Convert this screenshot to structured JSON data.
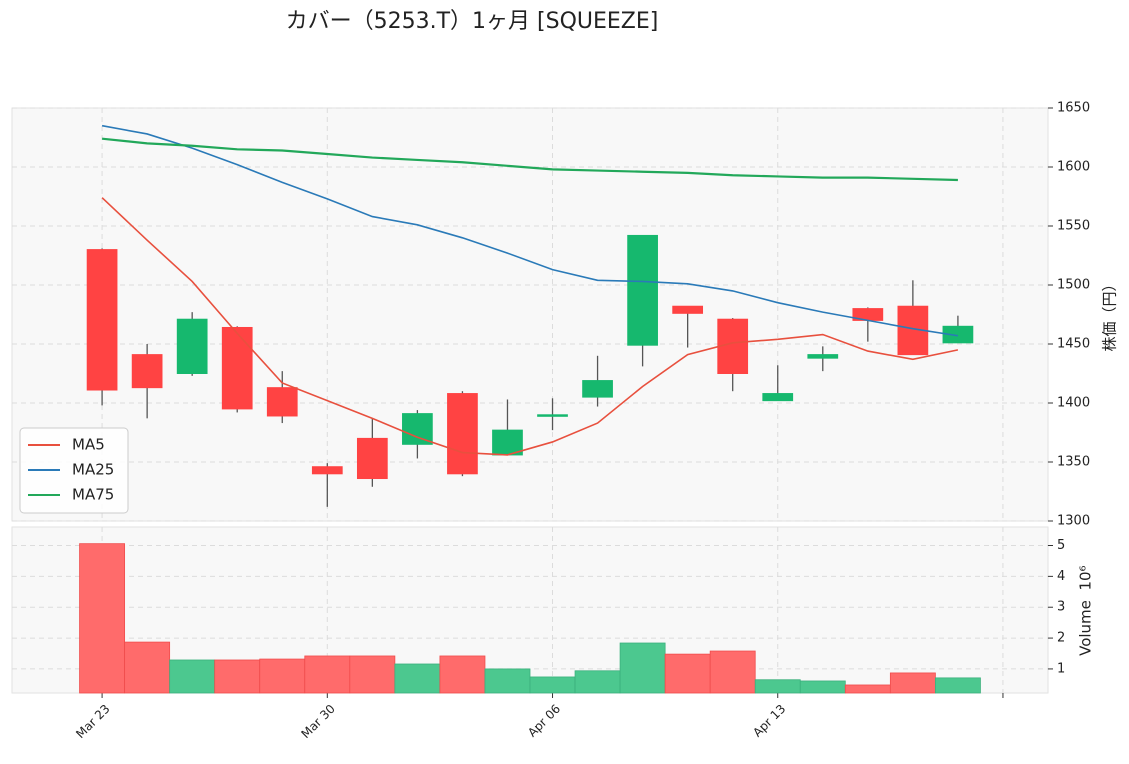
{
  "chart_data": {
    "type": "candlestick",
    "title": "カバー（5253.T）1ヶ月 [SQUEEZE]",
    "y_label": "株価（円）",
    "categories": [
      "Mar 23",
      null,
      null,
      null,
      null,
      "Mar 30",
      null,
      null,
      null,
      null,
      "Apr 06",
      null,
      null,
      null,
      null,
      "Apr 13",
      null,
      null,
      null,
      null
    ],
    "xlim": [
      -2,
      21
    ],
    "xticks": [
      0,
      5,
      10,
      15,
      20
    ],
    "open": [
      1530,
      1441,
      1425,
      1464,
      1413,
      1346,
      1370,
      1365,
      1408,
      1356,
      1389,
      1405,
      1449,
      1482,
      1471,
      1402,
      1438,
      1480,
      1482,
      1451
    ],
    "high": [
      1531,
      1450,
      1477,
      1465,
      1427,
      1349,
      1387,
      1394,
      1410,
      1403,
      1404,
      1440,
      1542,
      1482,
      1472,
      1432,
      1448,
      1481,
      1504,
      1474
    ],
    "low": [
      1398,
      1387,
      1423,
      1392,
      1383,
      1312,
      1329,
      1353,
      1338,
      1356,
      1377,
      1397,
      1431,
      1447,
      1410,
      1402,
      1427,
      1452,
      1441,
      1451
    ],
    "close": [
      1411,
      1413,
      1471,
      1395,
      1389,
      1340,
      1336,
      1391,
      1340,
      1377,
      1390,
      1419,
      1542,
      1476,
      1425,
      1408,
      1441,
      1470,
      1441,
      1465
    ],
    "up_color": "#16b86e",
    "down_color": "#ff4343",
    "series": [
      {
        "name": "MA5",
        "color": "#e8503e",
        "values": [
          1574,
          1538,
          1503,
          1459,
          1417,
          1402,
          1387,
          1371,
          1358,
          1356,
          1367,
          1383,
          1414,
          1441,
          1451,
          1454,
          1458,
          1444,
          1437,
          1445
        ]
      },
      {
        "name": "MA25",
        "color": "#2a7ab8",
        "values": [
          1635,
          1628,
          1616,
          1602,
          1587,
          1573,
          1558,
          1551,
          1540,
          1527,
          1513,
          1504,
          1503,
          1501,
          1495,
          1485,
          1477,
          1470,
          1463,
          1457
        ]
      },
      {
        "name": "MA75",
        "color": "#22a85a",
        "values": [
          1624,
          1620,
          1618,
          1615,
          1614,
          1611,
          1608,
          1606,
          1604,
          1601,
          1598,
          1597,
          1596,
          1595,
          1593,
          1592,
          1591,
          1591,
          1590,
          1589
        ]
      }
    ],
    "ylim": [
      1300,
      1650
    ],
    "yticks": [
      1300,
      1350,
      1400,
      1450,
      1500,
      1550,
      1600,
      1650
    ],
    "legend": "lower left",
    "grid": true,
    "volume": [
      5.06,
      1.87,
      1.29,
      1.29,
      1.32,
      1.42,
      1.42,
      1.16,
      1.42,
      1.0,
      0.74,
      0.94,
      1.84,
      1.48,
      1.58,
      0.65,
      0.61,
      0.48,
      0.87,
      0.71
    ],
    "volume_label": "Volume",
    "volume_scale": "10⁶",
    "volume_ylim": [
      0.22,
      5.6
    ],
    "volume_yticks": [
      1,
      2,
      3,
      4,
      5
    ],
    "volume_up_color": "#4cc88f",
    "volume_down_color": "#ff6b6b"
  }
}
